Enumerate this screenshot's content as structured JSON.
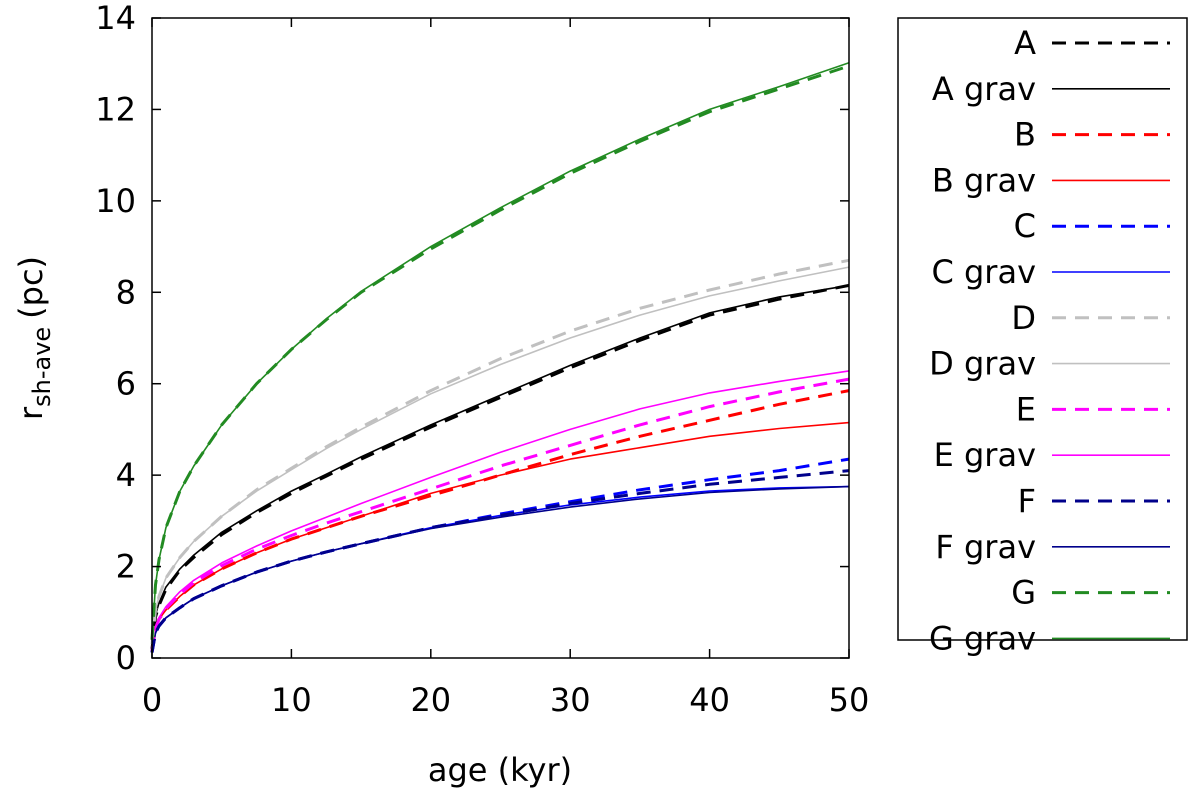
{
  "chart_data": {
    "type": "line",
    "title": "",
    "xlabel": "age (kyr)",
    "ylabel_main": "r",
    "ylabel_sub": "sh-ave",
    "ylabel_unit": "(pc)",
    "xlim": [
      0,
      50
    ],
    "ylim": [
      0,
      14
    ],
    "xticks": [
      0,
      10,
      20,
      30,
      40,
      50
    ],
    "yticks": [
      0,
      2,
      4,
      6,
      8,
      10,
      12,
      14
    ],
    "grid": false,
    "legend_position": "right",
    "x": [
      0,
      0.25,
      0.5,
      1,
      2,
      3,
      5,
      7.5,
      10,
      12.5,
      15,
      20,
      25,
      30,
      35,
      40,
      45,
      50
    ],
    "series": [
      {
        "name": "A",
        "color": "#000000",
        "dashed": true,
        "values": [
          0.2,
          0.9,
          1.15,
          1.5,
          1.92,
          2.2,
          2.7,
          3.18,
          3.6,
          3.98,
          4.35,
          5.05,
          5.7,
          6.35,
          6.95,
          7.5,
          7.85,
          8.15
        ]
      },
      {
        "name": "A grav",
        "color": "#000000",
        "dashed": false,
        "values": [
          0.2,
          0.95,
          1.2,
          1.55,
          1.95,
          2.25,
          2.75,
          3.22,
          3.65,
          4.02,
          4.4,
          5.1,
          5.75,
          6.4,
          7.0,
          7.55,
          7.9,
          8.15
        ]
      },
      {
        "name": "B",
        "color": "#ff0000",
        "dashed": true,
        "values": [
          0.15,
          0.65,
          0.85,
          1.05,
          1.35,
          1.6,
          1.95,
          2.3,
          2.6,
          2.85,
          3.1,
          3.55,
          4.0,
          4.45,
          4.85,
          5.2,
          5.55,
          5.85
        ]
      },
      {
        "name": "B grav",
        "color": "#ff0000",
        "dashed": false,
        "values": [
          0.15,
          0.65,
          0.85,
          1.05,
          1.35,
          1.6,
          1.95,
          2.3,
          2.6,
          2.85,
          3.1,
          3.6,
          4.0,
          4.35,
          4.6,
          4.85,
          5.02,
          5.15
        ]
      },
      {
        "name": "C",
        "color": "#0000ff",
        "dashed": true,
        "values": [
          0.12,
          0.55,
          0.7,
          0.88,
          1.1,
          1.3,
          1.58,
          1.88,
          2.12,
          2.32,
          2.5,
          2.85,
          3.15,
          3.42,
          3.68,
          3.9,
          4.1,
          4.35
        ]
      },
      {
        "name": "C grav",
        "color": "#0000ff",
        "dashed": false,
        "values": [
          0.12,
          0.55,
          0.7,
          0.88,
          1.1,
          1.3,
          1.58,
          1.88,
          2.12,
          2.32,
          2.5,
          2.85,
          3.12,
          3.35,
          3.52,
          3.65,
          3.72,
          3.75
        ]
      },
      {
        "name": "D",
        "color": "#c0c0c0",
        "dashed": true,
        "values": [
          0.3,
          1.05,
          1.35,
          1.75,
          2.2,
          2.55,
          3.1,
          3.68,
          4.15,
          4.62,
          5.05,
          5.85,
          6.55,
          7.15,
          7.65,
          8.05,
          8.4,
          8.7
        ]
      },
      {
        "name": "D grav",
        "color": "#c0c0c0",
        "dashed": false,
        "values": [
          0.3,
          1.05,
          1.35,
          1.75,
          2.2,
          2.55,
          3.1,
          3.65,
          4.12,
          4.58,
          5.0,
          5.78,
          6.42,
          7.0,
          7.5,
          7.92,
          8.25,
          8.55
        ]
      },
      {
        "name": "E",
        "color": "#ff00ff",
        "dashed": true,
        "values": [
          0.15,
          0.65,
          0.85,
          1.08,
          1.4,
          1.65,
          2.02,
          2.38,
          2.68,
          2.95,
          3.2,
          3.7,
          4.2,
          4.65,
          5.1,
          5.5,
          5.82,
          6.1
        ]
      },
      {
        "name": "E grav",
        "color": "#ff00ff",
        "dashed": false,
        "values": [
          0.15,
          0.68,
          0.88,
          1.12,
          1.45,
          1.7,
          2.08,
          2.45,
          2.78,
          3.08,
          3.38,
          3.95,
          4.5,
          5.0,
          5.45,
          5.8,
          6.05,
          6.28
        ]
      },
      {
        "name": "F",
        "color": "#00008b",
        "dashed": true,
        "values": [
          0.12,
          0.55,
          0.7,
          0.88,
          1.1,
          1.3,
          1.58,
          1.88,
          2.12,
          2.32,
          2.5,
          2.85,
          3.12,
          3.38,
          3.6,
          3.8,
          3.95,
          4.1
        ]
      },
      {
        "name": "F grav",
        "color": "#00008b",
        "dashed": false,
        "values": [
          0.12,
          0.55,
          0.7,
          0.88,
          1.1,
          1.3,
          1.58,
          1.88,
          2.12,
          2.32,
          2.5,
          2.83,
          3.08,
          3.3,
          3.48,
          3.62,
          3.7,
          3.75
        ]
      },
      {
        "name": "G",
        "color": "#228b22",
        "dashed": true,
        "values": [
          0.4,
          1.6,
          2.15,
          2.85,
          3.65,
          4.2,
          5.1,
          6.0,
          6.75,
          7.4,
          8.0,
          8.95,
          9.8,
          10.6,
          11.3,
          11.95,
          12.45,
          12.95
        ]
      },
      {
        "name": "G grav",
        "color": "#228b22",
        "dashed": false,
        "values": [
          0.4,
          1.6,
          2.15,
          2.85,
          3.65,
          4.2,
          5.1,
          6.0,
          6.75,
          7.42,
          8.02,
          9.0,
          9.85,
          10.65,
          11.35,
          12.0,
          12.5,
          13.02
        ]
      }
    ]
  }
}
